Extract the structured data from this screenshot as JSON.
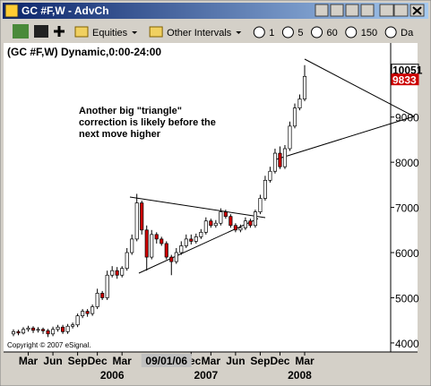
{
  "window": {
    "title": "GC #F,W - AdvCh"
  },
  "toolbar": {
    "items": [
      "Equities",
      "Other Intervals",
      "1",
      "5",
      "60",
      "150",
      "Da"
    ]
  },
  "chart_data": {
    "type": "candlestick",
    "header": "(GC #F,W) Dynamic,0:00-24:00",
    "annotation": [
      "Another big \"triangle\"",
      "correction is likely before the",
      "next move higher"
    ],
    "copyright": "Copyright © 2007 eSignal.",
    "open": [
      4200,
      4250,
      4220,
      4300,
      4330,
      4280,
      4300,
      4270,
      4200,
      4300,
      4350,
      4250,
      4370,
      4400,
      4600,
      4700,
      4650,
      4800,
      5100,
      5000,
      5500,
      5600,
      5500,
      5650,
      6000,
      6300,
      7100,
      6500,
      5900,
      6400,
      6300,
      6200,
      5900,
      5800,
      6000,
      6150,
      6300,
      6250,
      6350,
      6450,
      6700,
      6600,
      6650,
      6900,
      6800,
      6600,
      6500,
      6550,
      6700,
      6600,
      6900,
      7200,
      7600,
      7800,
      8200,
      7900,
      8300,
      8800,
      9200,
      9400
    ],
    "high": [
      4300,
      4290,
      4350,
      4380,
      4370,
      4350,
      4340,
      4310,
      4360,
      4400,
      4400,
      4420,
      4450,
      4650,
      4750,
      4750,
      4850,
      5200,
      5150,
      5600,
      5700,
      5680,
      5700,
      6100,
      6400,
      7300,
      7150,
      6600,
      6500,
      6450,
      6350,
      6250,
      5950,
      6100,
      6250,
      6400,
      6400,
      6420,
      6520,
      6780,
      6750,
      6720,
      6980,
      6950,
      6850,
      6650,
      6620,
      6780,
      6750,
      6950,
      7280,
      7700,
      7900,
      8300,
      8350,
      8380,
      8900,
      9300,
      9500,
      10150
    ],
    "low": [
      4150,
      4170,
      4190,
      4250,
      4220,
      4230,
      4200,
      4130,
      4150,
      4250,
      4200,
      4200,
      4320,
      4350,
      4550,
      4580,
      4600,
      4750,
      4950,
      4950,
      5450,
      5420,
      5450,
      5600,
      5950,
      6250,
      6400,
      5600,
      5850,
      6200,
      6150,
      5850,
      5500,
      5750,
      5950,
      6100,
      6180,
      6200,
      6300,
      6400,
      6550,
      6550,
      6600,
      6750,
      6550,
      6450,
      6450,
      6500,
      6550,
      6550,
      6850,
      7150,
      7550,
      7750,
      7850,
      7850,
      8250,
      8750,
      9150,
      9350
    ],
    "close": [
      4250,
      4220,
      4300,
      4330,
      4280,
      4300,
      4270,
      4200,
      4300,
      4350,
      4250,
      4370,
      4400,
      4600,
      4700,
      4650,
      4800,
      5100,
      5000,
      5500,
      5600,
      5500,
      5650,
      6000,
      6300,
      7100,
      6500,
      5900,
      6400,
      6300,
      6200,
      5900,
      5800,
      6000,
      6150,
      6300,
      6250,
      6350,
      6450,
      6700,
      6600,
      6650,
      6900,
      6800,
      6600,
      6500,
      6550,
      6700,
      6600,
      6900,
      7200,
      7600,
      7800,
      8200,
      7900,
      8300,
      8800,
      9200,
      9400,
      9900
    ],
    "up_color": "#ffffff",
    "down_color": "#cc0000",
    "ylim": [
      3800,
      10600
    ],
    "yticks": [
      4000,
      5000,
      6000,
      7000,
      8000,
      9000
    ],
    "price_labels": [
      {
        "value": 10051,
        "color": "#ffffff"
      },
      {
        "value": 9833,
        "color": "#cc0000"
      }
    ],
    "xticks": [
      {
        "value": 3,
        "label": "Mar"
      },
      {
        "value": 8,
        "label": "Jun"
      },
      {
        "value": 13,
        "label": "Sep"
      },
      {
        "value": 17,
        "label": "Dec"
      },
      {
        "value": 22,
        "label": "Mar"
      },
      {
        "value": 36,
        "label": "Dec"
      },
      {
        "value": 40,
        "label": "Mar"
      },
      {
        "value": 45,
        "label": "Jun"
      },
      {
        "value": 50,
        "label": "Sep"
      },
      {
        "value": 54,
        "label": "Dec"
      },
      {
        "value": 59,
        "label": "Mar"
      }
    ],
    "cursor_label": {
      "value": 31,
      "label": "09/01/06"
    },
    "years": [
      {
        "value": 20,
        "label": "2006"
      },
      {
        "value": 39,
        "label": "2007"
      },
      {
        "value": 58,
        "label": "2008"
      }
    ]
  }
}
